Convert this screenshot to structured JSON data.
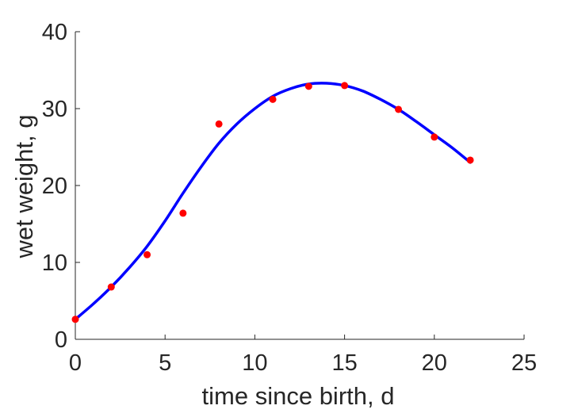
{
  "chart_data": {
    "type": "scatter",
    "title": "",
    "xlabel": "time since birth, d",
    "ylabel": "wet weight, g",
    "xlim": [
      0,
      25
    ],
    "ylim": [
      0,
      40
    ],
    "xticks": [
      0,
      5,
      10,
      15,
      20,
      25
    ],
    "yticks": [
      0,
      10,
      20,
      30,
      40
    ],
    "grid": false,
    "legend": "none",
    "series": [
      {
        "kind": "points",
        "color": "#ff0000",
        "x": [
          0,
          2,
          4,
          6,
          8,
          11,
          13,
          15,
          18,
          20,
          22
        ],
        "y": [
          2.6,
          6.8,
          11.0,
          16.4,
          28.0,
          31.2,
          32.9,
          33.0,
          29.9,
          26.3,
          23.3
        ]
      },
      {
        "kind": "line",
        "color": "#0000ff",
        "x": [
          0,
          1,
          2,
          3,
          4,
          5,
          6,
          7,
          8,
          9,
          10,
          11,
          12,
          13,
          14,
          15,
          16,
          17,
          18,
          19,
          20,
          21,
          22
        ],
        "y": [
          2.6,
          4.6,
          6.8,
          9.3,
          12.1,
          15.4,
          19.0,
          22.4,
          25.5,
          28.0,
          30.0,
          31.6,
          32.6,
          33.2,
          33.3,
          33.0,
          32.3,
          31.2,
          29.9,
          28.3,
          26.6,
          24.9,
          23.0
        ]
      }
    ]
  }
}
